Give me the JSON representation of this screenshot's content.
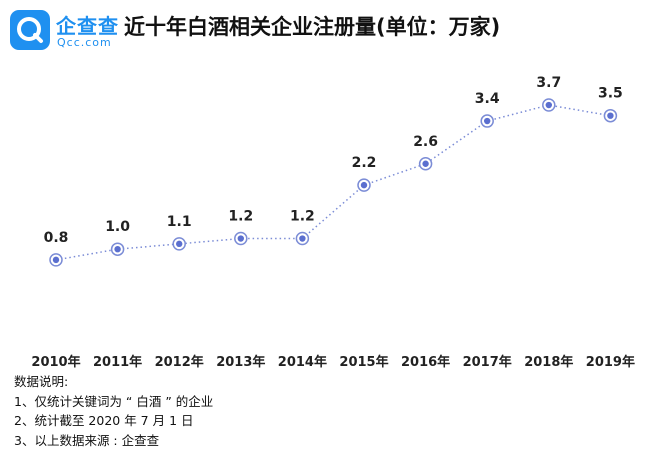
{
  "logo": {
    "cn": "企查查",
    "en": "Qcc.com"
  },
  "title": "近十年白酒相关企业注册量(单位：万家)",
  "notes": {
    "heading": "数据说明:",
    "items": [
      "1、仅统计关键词为 “ 白酒 ” 的企业",
      "2、统计截至 2020 年 7 月 1 日",
      "3、以上数据来源 : 企查查"
    ]
  },
  "colors": {
    "line": "#7b8cd6",
    "marker": "#5b6fcf",
    "brand": "#1f90f0"
  },
  "chart_data": {
    "type": "line",
    "title": "近十年白酒相关企业注册量(单位：万家)",
    "categories": [
      "2010年",
      "2011年",
      "2012年",
      "2013年",
      "2014年",
      "2015年",
      "2016年",
      "2017年",
      "2018年",
      "2019年"
    ],
    "values": [
      0.8,
      1.0,
      1.1,
      1.2,
      1.2,
      2.2,
      2.6,
      3.4,
      3.7,
      3.5
    ],
    "value_labels": [
      "0.8",
      "1.0",
      "1.1",
      "1.2",
      "1.2",
      "2.2",
      "2.6",
      "3.4",
      "3.7",
      "3.5"
    ],
    "line_style": "dotted",
    "grid": false,
    "legend": "none"
  }
}
